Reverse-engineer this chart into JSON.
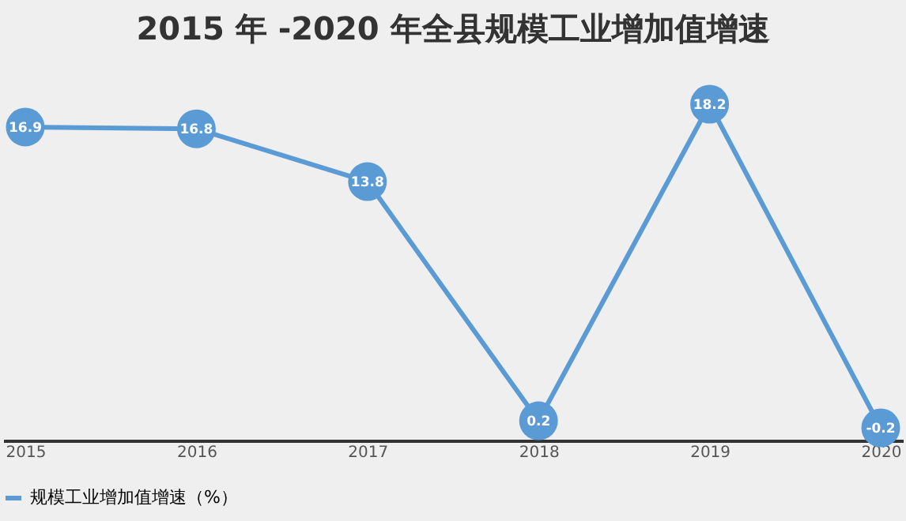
{
  "chart_data": {
    "type": "line",
    "title": "2015 年 -2020 年全县规模工业增加值增速",
    "categories": [
      "2015",
      "2016",
      "2017",
      "2018",
      "2019",
      "2020"
    ],
    "series": [
      {
        "name": "规模工业增加值增速（%）",
        "color": "#5b9bd5",
        "values": [
          16.9,
          16.8,
          13.8,
          0.2,
          18.2,
          -0.2
        ]
      }
    ],
    "data_labels": true,
    "marker": "circle",
    "line_style": "solid",
    "grid": false,
    "legend": "bottom",
    "tick_labels": "x"
  }
}
